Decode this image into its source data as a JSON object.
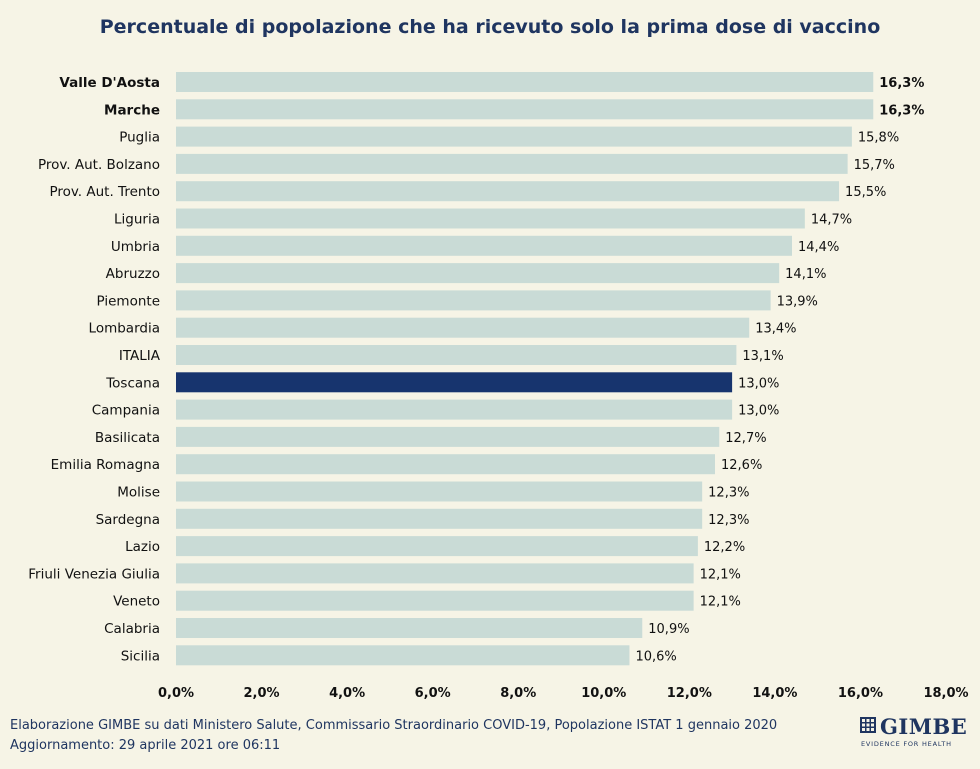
{
  "chart_data": {
    "type": "bar",
    "orientation": "horizontal",
    "title": "Percentuale di popolazione che ha ricevuto solo la prima dose di vaccino",
    "categories": [
      "Valle D'Aosta",
      "Marche",
      "Puglia",
      "Prov. Aut. Bolzano",
      "Prov. Aut. Trento",
      "Liguria",
      "Umbria",
      "Abruzzo",
      "Piemonte",
      "Lombardia",
      "ITALIA",
      "Toscana",
      "Campania",
      "Basilicata",
      "Emilia Romagna",
      "Molise",
      "Sardegna",
      "Lazio",
      "Friuli Venezia Giulia",
      "Veneto",
      "Calabria",
      "Sicilia"
    ],
    "values": [
      16.3,
      16.3,
      15.8,
      15.7,
      15.5,
      14.7,
      14.4,
      14.1,
      13.9,
      13.4,
      13.1,
      13.0,
      13.0,
      12.7,
      12.6,
      12.3,
      12.3,
      12.2,
      12.1,
      12.1,
      10.9,
      10.6
    ],
    "value_labels": [
      "16,3%",
      "16,3%",
      "15,8%",
      "15,7%",
      "15,5%",
      "14,7%",
      "14,4%",
      "14,1%",
      "13,9%",
      "13,4%",
      "13,1%",
      "13,0%",
      "13,0%",
      "12,7%",
      "12,6%",
      "12,3%",
      "12,3%",
      "12,2%",
      "12,1%",
      "12,1%",
      "10,9%",
      "10,6%"
    ],
    "bold_labels": [
      "Valle D'Aosta",
      "Marche"
    ],
    "highlight": "Toscana",
    "xlim": [
      0,
      18
    ],
    "ticks": [
      0,
      2,
      4,
      6,
      8,
      10,
      12,
      14,
      16,
      18
    ],
    "tick_labels": [
      "0,0%",
      "2,0%",
      "4,0%",
      "6,0%",
      "8,0%",
      "10,0%",
      "12,0%",
      "14,0%",
      "16,0%",
      "18,0%"
    ],
    "grid": false,
    "legend": "none",
    "colors": {
      "bar": "#c9dbd6",
      "highlight": "#17346e",
      "title": "#1f3560",
      "background": "#f6f4e6"
    }
  },
  "footer": {
    "line1": "Elaborazione GIMBE su dati Ministero Salute, Commissario  Straordinario COVID-19, Popolazione  ISTAT 1 gennaio 2020",
    "line2": "Aggiornamento: 29 aprile 2021 ore 06:11"
  },
  "logo": {
    "name": "GIMBE",
    "tagline": "EVIDENCE FOR HEALTH",
    "icon": "gimbe-grid-logo"
  }
}
